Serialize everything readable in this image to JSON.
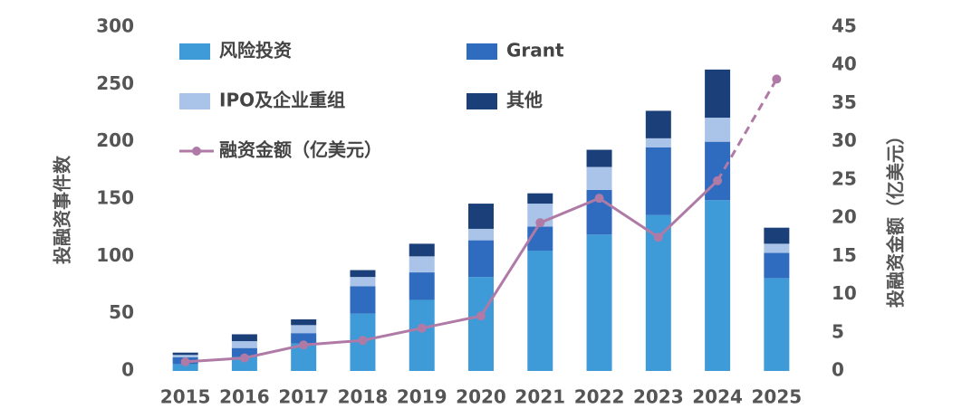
{
  "chart_data": {
    "type": "bar",
    "categories": [
      "2015",
      "2016",
      "2017",
      "2018",
      "2019",
      "2020",
      "2021",
      "2022",
      "2023",
      "2024",
      "2025"
    ],
    "y_label": "投融资事件数",
    "y2_label": "投融资金额（亿美元）",
    "ylim": [
      0,
      300
    ],
    "yticks": [
      0,
      50,
      100,
      150,
      200,
      250,
      300
    ],
    "y2lim": [
      0,
      45
    ],
    "y2ticks": [
      0,
      5,
      10,
      15,
      20,
      25,
      30,
      35,
      40,
      45
    ],
    "stacked": true,
    "dashed_last_segment": true,
    "series": [
      {
        "name": "风险投资",
        "type": "bar",
        "color": "#3f9ad8",
        "values": [
          6,
          12,
          24,
          50,
          62,
          82,
          105,
          119,
          136,
          149,
          81
        ]
      },
      {
        "name": "Grant",
        "type": "bar",
        "color": "#2f6cbf",
        "values": [
          6,
          8,
          9,
          24,
          24,
          32,
          21,
          39,
          59,
          51,
          22
        ]
      },
      {
        "name": "IPO及企业重组",
        "type": "bar",
        "color": "#a9c4e8",
        "values": [
          2,
          6,
          7,
          8,
          14,
          10,
          20,
          20,
          8,
          21,
          8
        ]
      },
      {
        "name": "其他",
        "type": "bar",
        "color": "#1b3f78",
        "values": [
          2,
          6,
          5,
          6,
          11,
          22,
          9,
          15,
          24,
          42,
          14
        ]
      },
      {
        "name": "融资金额（亿美元）",
        "type": "line",
        "axis": "y2",
        "color": "#b07aa6",
        "values": [
          1.2,
          1.7,
          3.4,
          4.0,
          5.6,
          7.2,
          19.4,
          22.6,
          17.5,
          24.9,
          38.2
        ]
      }
    ]
  }
}
